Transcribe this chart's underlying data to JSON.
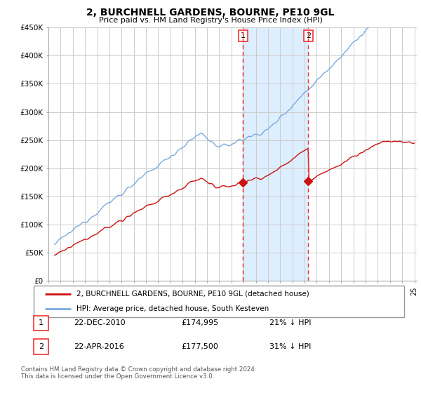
{
  "title": "2, BURCHNELL GARDENS, BOURNE, PE10 9GL",
  "subtitle": "Price paid vs. HM Land Registry's House Price Index (HPI)",
  "sale1_date": "22-DEC-2010",
  "sale1_price": "£174,995",
  "sale1_pct": "21% ↓ HPI",
  "sale2_date": "22-APR-2016",
  "sale2_price": "£177,500",
  "sale2_pct": "31% ↓ HPI",
  "footer": "Contains HM Land Registry data © Crown copyright and database right 2024.\nThis data is licensed under the Open Government Licence v3.0.",
  "ylim": [
    0,
    450000
  ],
  "yticks": [
    0,
    50000,
    100000,
    150000,
    200000,
    250000,
    300000,
    350000,
    400000,
    450000
  ],
  "ytick_labels": [
    "£0",
    "£50K",
    "£100K",
    "£150K",
    "£200K",
    "£250K",
    "£300K",
    "£350K",
    "£400K",
    "£450K"
  ],
  "sale1_x": 2010.95,
  "sale1_y": 174995,
  "sale2_x": 2016.3,
  "sale2_y": 177500,
  "hpi_color": "#7aaadd",
  "property_color": "#cc1111",
  "shade_color": "#ddeeff",
  "vline_color": "#ee3333",
  "xlim_start": 1995.5,
  "xlim_end": 2025.2
}
